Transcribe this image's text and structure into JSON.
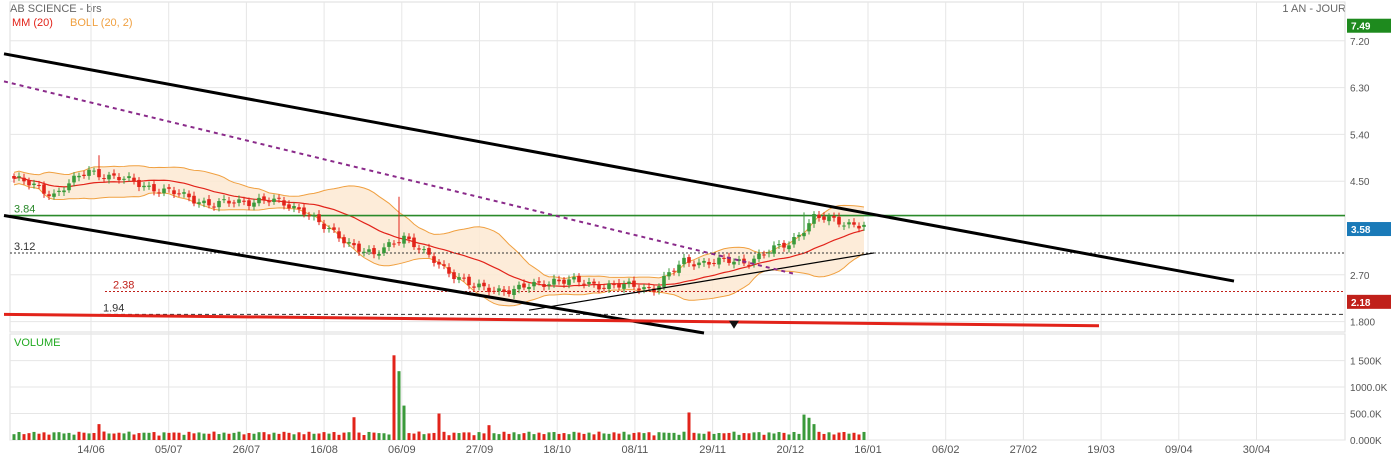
{
  "header": {
    "title": "AB SCIENCE - brs",
    "period": "1 AN - JOUR",
    "indicators": [
      {
        "label": "MM (20)",
        "color": "#e2231a"
      },
      {
        "label": "BOLL (20, 2)",
        "color": "#f0a040"
      }
    ]
  },
  "volume_panel": {
    "label": "VOLUME",
    "label_color": "#22aa22"
  },
  "colors": {
    "up": "#3a9a3a",
    "down": "#e2231a",
    "ma": "#e2231a",
    "bollinger": "#f0a040",
    "bollinger_fill": "#fde9d2",
    "trend_black": "#000000",
    "dotted_purple": "#8a2a8a",
    "support_red": "#e2231a",
    "resistance_green": "#2a8a2a",
    "grid": "#e6e6e6"
  },
  "chart_data": [
    {
      "type": "candlestick",
      "ylim": [
        1.6,
        7.6
      ],
      "y_ticks": [
        {
          "value": 7.2,
          "label": "7.20"
        },
        {
          "value": 6.3,
          "label": "6.30"
        },
        {
          "value": 5.4,
          "label": "5.40"
        },
        {
          "value": 4.5,
          "label": "4.50"
        },
        {
          "value": 2.7,
          "label": "2.70"
        },
        {
          "value": 1.8,
          "label": "1.800"
        }
      ],
      "x_ticks": [
        "14/06",
        "05/07",
        "26/07",
        "16/08",
        "06/09",
        "27/09",
        "18/10",
        "08/11",
        "29/11",
        "20/12",
        "16/01",
        "06/02",
        "27/02",
        "19/03",
        "09/04",
        "30/04"
      ],
      "price_badges": [
        {
          "value": 7.49,
          "label": "7.49",
          "color": "#1e8a1e"
        },
        {
          "value": 3.58,
          "label": "3.58",
          "color": "#1a7ab8"
        },
        {
          "value": 2.18,
          "label": "2.18",
          "color": "#c0201a"
        }
      ],
      "levels": [
        {
          "value": 3.84,
          "label": "3.84",
          "style": "solid",
          "color": "#2a8a2a",
          "label_color": "#2a8a2a"
        },
        {
          "value": 3.12,
          "label": "3.12",
          "style": "dotted",
          "color": "#333333",
          "label_color": "#333333"
        },
        {
          "value": 2.38,
          "label": "2.38",
          "style": "dotted",
          "color": "#c0201a",
          "label_color": "#c0201a"
        },
        {
          "value": 1.94,
          "label": "1.94",
          "style": "dashed",
          "color": "#333333",
          "label_color": "#333333"
        }
      ],
      "close_anchors": [
        {
          "day": 0,
          "close": 4.55
        },
        {
          "day": 8,
          "close": 4.25
        },
        {
          "day": 15,
          "close": 4.7
        },
        {
          "day": 25,
          "close": 4.45
        },
        {
          "day": 40,
          "close": 4.05
        },
        {
          "day": 50,
          "close": 4.15
        },
        {
          "day": 58,
          "close": 3.95
        },
        {
          "day": 62,
          "close": 3.6
        },
        {
          "day": 72,
          "close": 3.05
        },
        {
          "day": 76,
          "close": 3.35
        },
        {
          "day": 78,
          "close": 3.45
        },
        {
          "day": 82,
          "close": 3.1
        },
        {
          "day": 92,
          "close": 2.45
        },
        {
          "day": 100,
          "close": 2.4
        },
        {
          "day": 108,
          "close": 2.6
        },
        {
          "day": 118,
          "close": 2.5
        },
        {
          "day": 128,
          "close": 2.45
        },
        {
          "day": 134,
          "close": 2.95
        },
        {
          "day": 146,
          "close": 2.95
        },
        {
          "day": 155,
          "close": 3.3
        },
        {
          "day": 160,
          "close": 3.8
        },
        {
          "day": 170,
          "close": 3.65
        }
      ],
      "spikes": [
        {
          "day": 17,
          "high": 5.0
        },
        {
          "day": 77,
          "high": 4.2
        },
        {
          "day": 158,
          "high": 3.9
        }
      ],
      "volume": {
        "ylim": [
          0,
          1700
        ],
        "y_ticks": [
          {
            "value": 1500,
            "label": "1 500K"
          },
          {
            "value": 1000,
            "label": "1000.0K"
          },
          {
            "value": 500,
            "label": "500.0K"
          },
          {
            "value": 0,
            "label": "0.000K"
          }
        ],
        "spikes": [
          {
            "day": 17,
            "volume": 300
          },
          {
            "day": 68,
            "volume": 430
          },
          {
            "day": 76,
            "volume": 1600
          },
          {
            "day": 77,
            "volume": 1300
          },
          {
            "day": 78,
            "volume": 650
          },
          {
            "day": 85,
            "volume": 500
          },
          {
            "day": 95,
            "volume": 280
          },
          {
            "day": 135,
            "volume": 520
          },
          {
            "day": 158,
            "volume": 480
          },
          {
            "day": 159,
            "volume": 420
          },
          {
            "day": 160,
            "volume": 300
          }
        ],
        "base": 80
      }
    }
  ],
  "drawings": [
    {
      "type": "trend",
      "color": "#000000",
      "width": 3,
      "from": {
        "day": -2,
        "price": 6.95
      },
      "to": {
        "day": 244,
        "price": 2.58
      }
    },
    {
      "type": "trend",
      "color": "#000000",
      "width": 3,
      "from": {
        "day": -2,
        "price": 3.84
      },
      "to": {
        "day": 138,
        "price": 1.58
      }
    },
    {
      "type": "trend",
      "color": "#000000",
      "width": 1.2,
      "from": {
        "day": 103,
        "price": 2.02
      },
      "to": {
        "day": 172,
        "price": 3.12
      }
    },
    {
      "type": "trend",
      "color": "#8a2a8a",
      "width": 2,
      "dash": "4,4",
      "from": {
        "day": -2,
        "price": 6.42
      },
      "to": {
        "day": 156,
        "price": 2.72
      }
    },
    {
      "type": "trend",
      "color": "#e2231a",
      "width": 3,
      "from": {
        "day": -2,
        "price": 1.94
      },
      "to": {
        "day": 217,
        "price": 1.72
      }
    },
    {
      "type": "marker",
      "day": 144,
      "price": 1.74
    }
  ]
}
